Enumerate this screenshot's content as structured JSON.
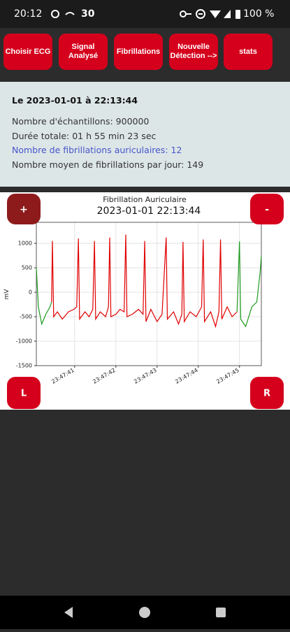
{
  "status_bar": {
    "time": "20:12",
    "notification": "30",
    "battery": "100 %"
  },
  "buttons": [
    "Choisir ECG",
    "Signal Analysé",
    "Fibrillations",
    "Nouvelle Détection -->",
    "stats"
  ],
  "info": {
    "title": "Le 2023-01-01 à 22:13:44",
    "lines": [
      "Nombre d'échantillons: 900000",
      "Durée totale: 01 h 55 min 23 sec",
      "Nombre de fibrillations auriculaires: 12",
      "Nombre moyen de fibrillations par jour: 149"
    ]
  },
  "chart_buttons": {
    "zoom_in": "+",
    "zoom_out": "-",
    "left": "L",
    "right": "R"
  },
  "chart_data": {
    "type": "line",
    "title": "Fibrillation Auriculaire",
    "subtitle": "2023-01-01 22:13:44",
    "y_label": "mV",
    "grid": true,
    "xlim": [
      40.07,
      45.53
    ],
    "ylim": [
      -1500,
      1430
    ],
    "xticks": [
      {
        "value": 41,
        "label": "23:47:41"
      },
      {
        "value": 42,
        "label": "23:47:42"
      },
      {
        "value": 43,
        "label": "23:47:43"
      },
      {
        "value": 44,
        "label": "23:47:44"
      },
      {
        "value": 45,
        "label": "23:47:45"
      }
    ],
    "yticks": [
      -1500,
      -1000,
      -500,
      0,
      500,
      1000
    ],
    "x": [
      40.07,
      40.12,
      40.2,
      40.3,
      40.4,
      40.44,
      40.46,
      40.49,
      40.58,
      40.7,
      40.85,
      40.98,
      41.05,
      41.09,
      41.12,
      41.25,
      41.35,
      41.44,
      41.48,
      41.51,
      41.62,
      41.75,
      41.82,
      41.85,
      41.88,
      42.0,
      42.1,
      42.2,
      42.24,
      42.27,
      42.4,
      42.55,
      42.66,
      42.7,
      42.73,
      42.85,
      43.0,
      43.12,
      43.22,
      43.25,
      43.4,
      43.52,
      43.6,
      43.63,
      43.66,
      43.8,
      43.95,
      44.08,
      44.12,
      44.15,
      44.3,
      44.42,
      44.5,
      44.54,
      44.57,
      44.7,
      44.82,
      44.94,
      45.0,
      45.03,
      45.15,
      45.3,
      45.42,
      45.5,
      45.53
    ],
    "series": [
      {
        "color": "#e00000",
        "values": [
          null,
          null,
          null,
          null,
          null,
          -200,
          1050,
          -500,
          -400,
          -550,
          -400,
          -350,
          -300,
          1100,
          -550,
          -400,
          -500,
          -350,
          1050,
          -550,
          -400,
          -500,
          -300,
          1120,
          -500,
          -450,
          -350,
          -400,
          1180,
          -500,
          -450,
          -350,
          -450,
          1050,
          -600,
          -350,
          -600,
          -450,
          1120,
          -550,
          -400,
          -650,
          -450,
          1030,
          -600,
          -400,
          -500,
          -300,
          1080,
          -600,
          -400,
          -700,
          -400,
          1080,
          -550,
          -300,
          -500,
          -400,
          null,
          null,
          null,
          null,
          null,
          null,
          null
        ]
      },
      {
        "color": "#1f9a1f",
        "values": [
          500,
          -300,
          -650,
          -450,
          -300,
          -200,
          null,
          null,
          null,
          null,
          null,
          null,
          null,
          null,
          null,
          null,
          null,
          null,
          null,
          null,
          null,
          null,
          null,
          null,
          null,
          null,
          null,
          null,
          null,
          null,
          null,
          null,
          null,
          null,
          null,
          null,
          null,
          null,
          null,
          null,
          null,
          null,
          null,
          null,
          null,
          null,
          null,
          null,
          null,
          null,
          null,
          null,
          null,
          null,
          null,
          null,
          null,
          -400,
          1040,
          -550,
          -700,
          -300,
          -200,
          400,
          750
        ]
      }
    ]
  }
}
